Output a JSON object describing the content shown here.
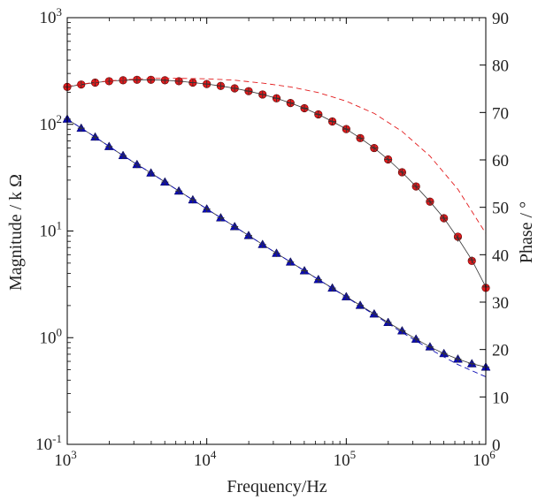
{
  "chart_data": {
    "type": "scatter",
    "xlabel": "Frequency/Hz",
    "ylabel_left": "Magnitude / k Ω",
    "ylabel_right": "Phase / °",
    "x_scale": "log",
    "y_left_scale": "log",
    "xlim": [
      1000,
      1000000
    ],
    "ylim_left": [
      0.1,
      1000
    ],
    "ylim_right": [
      0,
      90
    ],
    "x_ticks": [
      {
        "base": "10",
        "exp": "3",
        "value": 1000
      },
      {
        "base": "10",
        "exp": "4",
        "value": 10000
      },
      {
        "base": "10",
        "exp": "5",
        "value": 100000
      },
      {
        "base": "10",
        "exp": "6",
        "value": 1000000
      }
    ],
    "y_left_ticks": [
      {
        "base": "10",
        "exp": "-1",
        "value": 0.1
      },
      {
        "base": "10",
        "exp": "0",
        "value": 1
      },
      {
        "base": "10",
        "exp": "1",
        "value": 10
      },
      {
        "base": "10",
        "exp": "2",
        "value": 100
      },
      {
        "base": "10",
        "exp": "3",
        "value": 1000
      }
    ],
    "y_right_ticks": [
      "0",
      "10",
      "20",
      "30",
      "40",
      "50",
      "60",
      "70",
      "80",
      "90"
    ],
    "grid": false,
    "legend": "none",
    "series": [
      {
        "axis": "right",
        "style": "red-circle-markers",
        "color": "#e31a1c",
        "x": [
          1000,
          1259,
          1585,
          1995,
          2512,
          3162,
          3981,
          5012,
          6310,
          7943,
          10000,
          12589,
          15849,
          19953,
          25119,
          31623,
          39811,
          50119,
          63096,
          79433,
          100000,
          125893,
          158489,
          199526,
          251189,
          316228,
          398107,
          501187,
          630957,
          794328,
          1000000
        ],
        "values": [
          75.4,
          75.9,
          76.3,
          76.6,
          76.8,
          76.9,
          76.9,
          76.8,
          76.6,
          76.3,
          76.0,
          75.6,
          75.1,
          74.5,
          73.8,
          73.0,
          72.0,
          70.9,
          69.6,
          68.1,
          66.5,
          64.6,
          62.5,
          60.1,
          57.4,
          54.4,
          51.2,
          47.7,
          43.8,
          38.7,
          33.0
        ]
      },
      {
        "axis": "right",
        "style": "black-thin-line-with-plus",
        "color": "#333333",
        "x": [
          1000,
          1259,
          1585,
          1995,
          2512,
          3162,
          3981,
          5012,
          6310,
          7943,
          10000,
          12589,
          15849,
          19953,
          25119,
          31623,
          39811,
          50119,
          63096,
          79433,
          100000,
          125893,
          158489,
          199526,
          251189,
          316228,
          398107,
          501187,
          630957,
          794328,
          1000000
        ],
        "values": [
          75.4,
          75.9,
          76.3,
          76.6,
          76.8,
          76.9,
          76.9,
          76.8,
          76.6,
          76.3,
          76.0,
          75.6,
          75.1,
          74.5,
          73.8,
          73.0,
          72.0,
          70.9,
          69.6,
          68.1,
          66.5,
          64.6,
          62.5,
          60.1,
          57.4,
          54.4,
          51.2,
          47.7,
          43.5,
          38.9,
          33.2
        ]
      },
      {
        "axis": "right",
        "style": "red-dashed-line",
        "color": "#e31a1c",
        "x": [
          1000,
          1585,
          2512,
          3981,
          6310,
          10000,
          15849,
          25119,
          39811,
          63096,
          100000,
          158489,
          251189,
          398107,
          630957,
          1000000
        ],
        "values": [
          75.5,
          76.4,
          76.9,
          77.2,
          77.2,
          77.1,
          76.8,
          76.2,
          75.4,
          74.2,
          72.4,
          69.8,
          66.0,
          60.8,
          53.8,
          44.5
        ]
      },
      {
        "axis": "left",
        "style": "blue-triangle-markers",
        "color": "#0a0ab4",
        "x": [
          1000,
          1259,
          1585,
          1995,
          2512,
          3162,
          3981,
          5012,
          6310,
          7943,
          10000,
          12589,
          15849,
          19953,
          25119,
          31623,
          39811,
          50119,
          63096,
          79433,
          100000,
          125893,
          158489,
          199526,
          251189,
          316228,
          398107,
          501187,
          630957,
          794328,
          1000000
        ],
        "values": [
          112,
          92,
          76,
          62,
          51,
          42,
          35,
          28.8,
          23.7,
          19.6,
          16.1,
          13.3,
          11.0,
          9.07,
          7.48,
          6.18,
          5.12,
          4.24,
          3.51,
          2.92,
          2.42,
          2.01,
          1.67,
          1.39,
          1.16,
          0.97,
          0.82,
          0.71,
          0.63,
          0.57,
          0.53
        ]
      },
      {
        "axis": "left",
        "style": "black-thin-line-with-plus",
        "color": "#333333",
        "x": [
          1000,
          1259,
          1585,
          1995,
          2512,
          3162,
          3981,
          5012,
          6310,
          7943,
          10000,
          12589,
          15849,
          19953,
          25119,
          31623,
          39811,
          50119,
          63096,
          79433,
          100000,
          125893,
          158489,
          199526,
          251189,
          316228,
          398107,
          501187,
          630957,
          794328,
          1000000
        ],
        "values": [
          112,
          92,
          76,
          62,
          51,
          42,
          35,
          28.8,
          23.7,
          19.6,
          16.1,
          13.3,
          11.0,
          9.07,
          7.48,
          6.18,
          5.12,
          4.24,
          3.51,
          2.92,
          2.42,
          2.01,
          1.67,
          1.39,
          1.16,
          0.97,
          0.82,
          0.71,
          0.63,
          0.57,
          0.53
        ]
      },
      {
        "axis": "left",
        "style": "blue-dashed-line",
        "color": "#0a0ab4",
        "x": [
          1000,
          1585,
          2512,
          3981,
          6310,
          10000,
          15849,
          25119,
          39811,
          63096,
          100000,
          158489,
          251189,
          398107,
          630957,
          1000000
        ],
        "values": [
          112,
          76,
          51,
          35,
          23.7,
          16.1,
          11.0,
          7.48,
          5.12,
          3.51,
          2.4,
          1.64,
          1.12,
          0.78,
          0.56,
          0.43
        ]
      }
    ]
  }
}
